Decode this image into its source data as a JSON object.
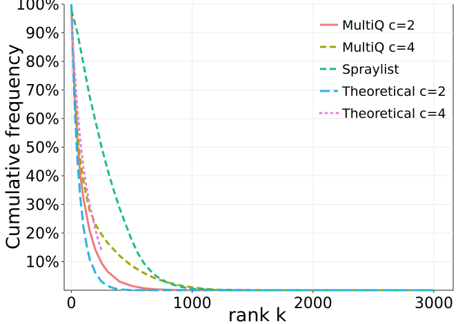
{
  "chart_data": {
    "type": "line",
    "title": "",
    "xlabel": "rank k",
    "ylabel": "Cumulative frequency",
    "xlim": [
      -60,
      3160
    ],
    "ylim": [
      0,
      100
    ],
    "x_ticks": [
      0,
      1000,
      2000,
      3000
    ],
    "x_tick_labels": [
      "0",
      "1000",
      "2000",
      "3000"
    ],
    "y_ticks": [
      10,
      20,
      30,
      40,
      50,
      60,
      70,
      80,
      90,
      100
    ],
    "y_tick_labels": [
      "10%",
      "20%",
      "30%",
      "40%",
      "50%",
      "60%",
      "70%",
      "80%",
      "90%",
      "100%"
    ],
    "grid": true,
    "legend_position": "top-right",
    "series": [
      {
        "name": "MultiQ c=2",
        "color": "#f07a78",
        "dash": "solid",
        "x": [
          0,
          25,
          50,
          75,
          100,
          150,
          200,
          250,
          300,
          400,
          500,
          600,
          700,
          800,
          1000,
          1500,
          3000
        ],
        "y": [
          99,
          70,
          52,
          40,
          32,
          21,
          14,
          9.5,
          6.5,
          3,
          1.5,
          0.7,
          0.3,
          0.15,
          0.03,
          0,
          0
        ]
      },
      {
        "name": "MultiQ c=4",
        "color": "#a3a500",
        "dash": "dashed",
        "x": [
          0,
          25,
          50,
          75,
          100,
          150,
          200,
          250,
          300,
          400,
          500,
          600,
          700,
          800,
          900,
          1000,
          1100,
          1200,
          1500,
          3000
        ],
        "y": [
          100,
          72,
          55,
          45,
          38,
          28,
          23,
          19.5,
          16.5,
          12,
          8.5,
          6,
          4,
          2.7,
          1.7,
          1,
          0.5,
          0.2,
          0.05,
          0
        ]
      },
      {
        "name": "Spraylist",
        "color": "#1dbb87",
        "dash": "dashed",
        "x": [
          0,
          50,
          100,
          150,
          200,
          250,
          300,
          350,
          400,
          450,
          500,
          550,
          600,
          650,
          700,
          800,
          900,
          1000,
          1200,
          1500,
          3000
        ],
        "y": [
          98,
          90,
          79,
          68,
          59,
          50,
          42,
          35,
          28.5,
          23,
          17.5,
          13,
          9.5,
          7,
          5,
          2.5,
          1.2,
          0.5,
          0.1,
          0,
          0
        ]
      },
      {
        "name": "Theoretical c=2",
        "color": "#27b2e6",
        "dash": "longdash",
        "x": [
          0,
          10,
          20,
          30,
          40,
          50,
          75,
          100,
          125,
          150,
          200,
          250,
          300,
          350,
          400,
          500,
          600,
          1000,
          3000
        ],
        "y": [
          100,
          85,
          72,
          61,
          53,
          45,
          32,
          22,
          16,
          11,
          6,
          3,
          1.5,
          0.7,
          0.3,
          0.05,
          0,
          0,
          0
        ]
      },
      {
        "name": "Theoretical c=4",
        "color": "#e77ee0",
        "dash": "dotted",
        "x": [
          0,
          10,
          25,
          50,
          75,
          100,
          125,
          150,
          175,
          200,
          225,
          250
        ],
        "y": [
          95,
          87,
          78,
          63,
          52,
          43,
          36,
          30,
          25.5,
          21,
          17,
          14
        ]
      }
    ]
  }
}
